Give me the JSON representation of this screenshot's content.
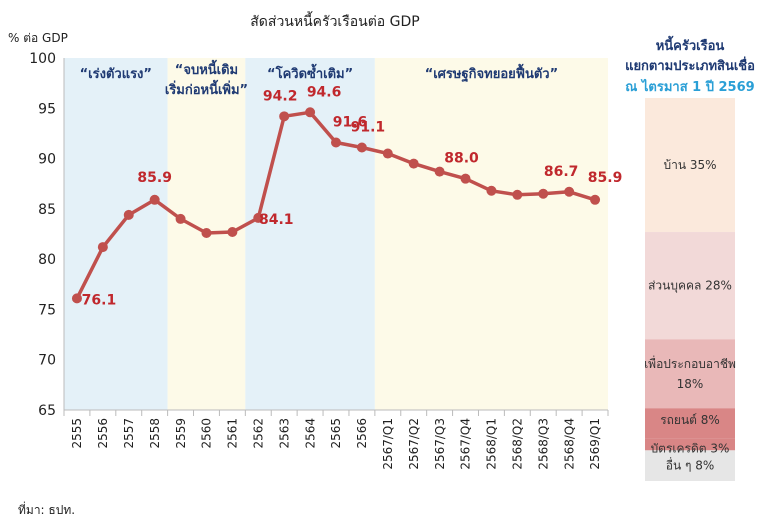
{
  "chart_data": {
    "type": "line",
    "title": "สัดส่วนหนี้ครัวเรือนต่อ GDP",
    "ylabel": "% ต่อ GDP",
    "ylim": [
      65,
      100
    ],
    "yticks": [
      "65",
      "70",
      "75",
      "80",
      "85",
      "90",
      "95",
      "100"
    ],
    "categories": [
      "2555",
      "2556",
      "2557",
      "2558",
      "2559",
      "2560",
      "2561",
      "2562",
      "2563",
      "2564",
      "2565",
      "2566",
      "2567/Q1",
      "2567/Q2",
      "2567/Q3",
      "2567/Q4",
      "2568/Q1",
      "2568/Q2",
      "2568/Q3",
      "2568/Q4",
      "2569/Q1"
    ],
    "series": [
      {
        "values": [
          76.1,
          81.2,
          84.4,
          85.9,
          84.0,
          82.6,
          82.7,
          84.1,
          94.2,
          94.6,
          91.6,
          91.1,
          90.5,
          89.5,
          88.7,
          88.0,
          86.8,
          86.4,
          86.5,
          86.7,
          85.9
        ]
      }
    ],
    "data_labels": [
      {
        "index": 0,
        "text": "76.1"
      },
      {
        "index": 3,
        "text": "85.9"
      },
      {
        "index": 7,
        "text": "84.1"
      },
      {
        "index": 8,
        "text": "94.2"
      },
      {
        "index": 9,
        "text": "94.6"
      },
      {
        "index": 10,
        "text": "91.6"
      },
      {
        "index": 11,
        "text": "91.1"
      },
      {
        "index": 15,
        "text": "88.0"
      },
      {
        "index": 19,
        "text": "86.7"
      },
      {
        "index": 20,
        "text": "85.9"
      }
    ],
    "periods": [
      {
        "label": "“เร่งตัวแรง”",
        "start_index": 0,
        "end_index": 3,
        "color": "#e4f1f8"
      },
      {
        "label_line1": "“จบหนี้เดิม",
        "label_line2": "เริ่มก่อหนี้เพิ่ม”",
        "start_index": 4,
        "end_index": 6,
        "color": "#fdfae8"
      },
      {
        "label": "“โควิดซ้ำเติม”",
        "start_index": 7,
        "end_index": 11,
        "color": "#e4f1f8"
      },
      {
        "label": "“เศรษฐกิจทยอยฟื้นตัว”",
        "start_index": 12,
        "end_index": 20,
        "color": "#fdfae8"
      }
    ],
    "grid": false,
    "line_color": "#c0504d",
    "label_color": "#c0282d",
    "source": "ที่มา: ธปท."
  },
  "breakdown": {
    "title_line1": "หนี้ครัวเรือน",
    "title_line2": "แยกตามประเภทสินเชื่อ",
    "subtitle": "ณ ไตรมาส 1 ปี 2569",
    "segments": [
      {
        "label": "บ้าน 35%",
        "value": 35,
        "color": "#fbe9dc"
      },
      {
        "label": "ส่วนบุคคล 28%",
        "value": 28,
        "color": "#f2d9d8"
      },
      {
        "label_line1": "เพื่อประกอบอาชีพ",
        "label_line2": "18%",
        "value": 18,
        "color": "#e9b8b8"
      },
      {
        "label": "รถยนต์ 8%",
        "value": 8,
        "color": "#d98686"
      },
      {
        "label": "บัตรเครดิต 3%",
        "value": 3,
        "color": "#d98686"
      },
      {
        "label": "อื่น ๆ 8%",
        "value": 8,
        "color": "#e6e6e6"
      }
    ]
  }
}
